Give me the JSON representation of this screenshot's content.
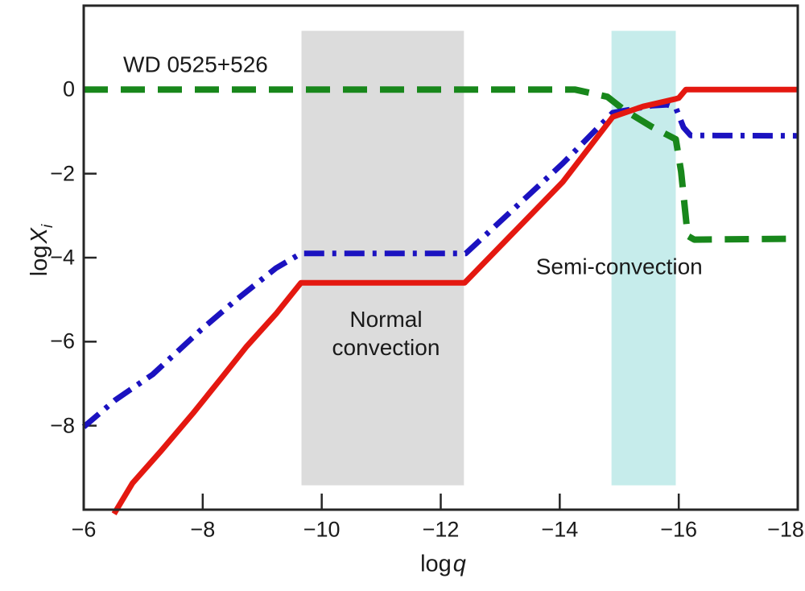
{
  "labels": {
    "x_prefix": "log",
    "x_var": "q",
    "y_prefix": "log",
    "y_var": "X",
    "y_sub": "i"
  },
  "chart_data": {
    "type": "line",
    "title": "WD 0525+526",
    "xlabel": "log q",
    "ylabel": "log X_i",
    "grid": false,
    "legend": "none",
    "x_axis": {
      "min": -6,
      "max": -18,
      "reversed": true,
      "ticks": [
        -6,
        -8,
        -10,
        -12,
        -14,
        -16,
        -18
      ]
    },
    "y_axis": {
      "min": -10,
      "max": 2,
      "ticks": [
        0,
        -2,
        -4,
        -6,
        -8
      ]
    },
    "band_y_extent": {
      "top": 1.4,
      "bottom": -9.42
    },
    "regions": [
      {
        "name": "normal-convection-band",
        "label": "Normal convection",
        "x_from": -9.66,
        "x_to": -12.39,
        "color": "#dcdcdc"
      },
      {
        "name": "semi-convection-band",
        "label": "Semi-convection",
        "x_from": -14.87,
        "x_to": -15.95,
        "color": "#c6eceb"
      }
    ],
    "series": [
      {
        "name": "green-dashed",
        "color": "#18871b",
        "style": "dashed",
        "width": 8,
        "points": [
          [
            -6,
            0
          ],
          [
            -14.26,
            0
          ],
          [
            -14.8,
            -0.17
          ],
          [
            -15.09,
            -0.49
          ],
          [
            -15.54,
            -0.88
          ],
          [
            -15.95,
            -1.18
          ],
          [
            -16.04,
            -1.95
          ],
          [
            -16.15,
            -3.48
          ],
          [
            -16.26,
            -3.57
          ],
          [
            -18,
            -3.55
          ]
        ]
      },
      {
        "name": "blue-dash-dot",
        "color": "#1b12c0",
        "style": "dashdot",
        "width": 7,
        "points": [
          [
            -6,
            -8.03
          ],
          [
            -6.53,
            -7.39
          ],
          [
            -7.16,
            -6.78
          ],
          [
            -7.97,
            -5.72
          ],
          [
            -8.55,
            -5.02
          ],
          [
            -9.23,
            -4.25
          ],
          [
            -9.65,
            -3.9
          ],
          [
            -12.42,
            -3.9
          ],
          [
            -14.05,
            -1.76
          ],
          [
            -14.89,
            -0.55
          ],
          [
            -15.55,
            -0.38
          ],
          [
            -15.81,
            -0.36
          ],
          [
            -15.95,
            -0.43
          ],
          [
            -16.08,
            -0.9
          ],
          [
            -16.2,
            -1.09
          ],
          [
            -18,
            -1.1
          ]
        ]
      },
      {
        "name": "red-solid",
        "color": "#e41810",
        "style": "solid",
        "width": 7,
        "points": [
          [
            -6.51,
            -10.1
          ],
          [
            -6.82,
            -9.37
          ],
          [
            -7.3,
            -8.6
          ],
          [
            -7.84,
            -7.7
          ],
          [
            -8.34,
            -6.82
          ],
          [
            -8.74,
            -6.11
          ],
          [
            -9.23,
            -5.34
          ],
          [
            -9.65,
            -4.6
          ],
          [
            -12.4,
            -4.6
          ],
          [
            -14.05,
            -2.2
          ],
          [
            -14.89,
            -0.65
          ],
          [
            -15.4,
            -0.4
          ],
          [
            -15.95,
            -0.22
          ],
          [
            -16.0,
            -0.2
          ],
          [
            -16.12,
            0
          ],
          [
            -18,
            0
          ]
        ]
      }
    ],
    "annotations": [
      {
        "name": "star-name",
        "text": "WD 0525+526",
        "x": -7.88,
        "y": 0.6
      },
      {
        "name": "normal-convection-label",
        "lines": [
          "Normal",
          "convection"
        ],
        "x": -11.08,
        "y": -5.8
      },
      {
        "name": "semi-convection-label",
        "text": "Semi-convection",
        "x": -15.0,
        "y": -4.21
      }
    ],
    "frame_color": "#262626"
  }
}
